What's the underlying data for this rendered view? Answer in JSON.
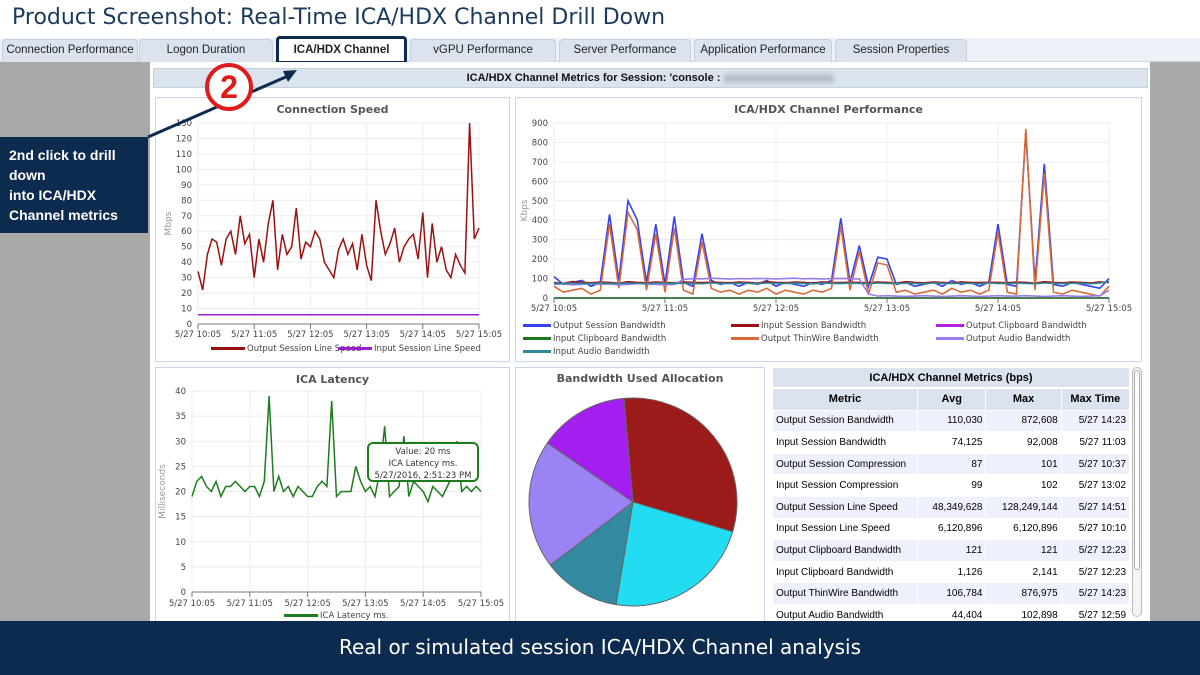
{
  "title": "Product Screenshot: Real-Time ICA/HDX Channel Drill Down",
  "tabs": [
    {
      "label": "Connection Performance",
      "active": false
    },
    {
      "label": "Logon Duration",
      "active": false
    },
    {
      "label": "ICA/HDX Channel",
      "active": true
    },
    {
      "label": "vGPU Performance",
      "active": false
    },
    {
      "label": "Server Performance",
      "active": false
    },
    {
      "label": "Application Performance",
      "active": false
    },
    {
      "label": "Session Properties",
      "active": false
    }
  ],
  "session_header": "ICA/HDX Channel Metrics for Session:  'console :",
  "callout": {
    "step": "2",
    "line1": "2nd click to drill down",
    "line2": "into ICA/HDX Channel metrics"
  },
  "footer": "Real or simulated session ICA/HDX Channel analysis",
  "colors": {
    "navy": "#0d2b4e",
    "step_red": "#e01b1b"
  },
  "tooltip": {
    "value": "Value: 20 ms",
    "series": "ICA Latency ms.",
    "time": "5/27/2016, 2:51:23 PM"
  },
  "chart_data": [
    {
      "id": "speed",
      "type": "line",
      "title": "Connection Speed",
      "ylabel": "Mbps",
      "ylim": [
        0,
        130
      ],
      "yticks": [
        0,
        10,
        20,
        30,
        40,
        50,
        60,
        70,
        80,
        90,
        100,
        110,
        120,
        130
      ],
      "xticks": [
        "5/27 10:05",
        "5/27 11:05",
        "5/27 12:05",
        "5/27 13:05",
        "5/27 14:05",
        "5/27 15:05"
      ],
      "grid": true,
      "legend": "bottom",
      "x_start": "5/27 10:05",
      "x_step_minutes": 5,
      "series": [
        {
          "name": "Output Session Line Speed",
          "color": "#9b1111",
          "values": [
            34,
            22,
            45,
            55,
            53,
            38,
            55,
            60,
            45,
            70,
            52,
            58,
            30,
            55,
            40,
            65,
            80,
            35,
            58,
            45,
            50,
            75,
            42,
            53,
            50,
            60,
            55,
            40,
            35,
            30,
            48,
            55,
            45,
            52,
            35,
            58,
            38,
            28,
            80,
            60,
            45,
            52,
            62,
            40,
            50,
            55,
            58,
            42,
            72,
            30,
            65,
            40,
            50,
            35,
            30,
            45,
            38,
            33,
            130,
            55,
            62
          ]
        },
        {
          "name": "Input Session Line Speed",
          "color": "#9b1fd0",
          "values": [
            6,
            6,
            6,
            6,
            6,
            6,
            6,
            6,
            6,
            6,
            6,
            6,
            6,
            6,
            6,
            6,
            6,
            6,
            6,
            6,
            6,
            6,
            6,
            6,
            6,
            6,
            6,
            6,
            6,
            6,
            6,
            6,
            6,
            6,
            6,
            6,
            6,
            6,
            6,
            6,
            6,
            6,
            6,
            6,
            6,
            6,
            6,
            6,
            6,
            6,
            6,
            6,
            6,
            6,
            6,
            6,
            6,
            6,
            6,
            6,
            6
          ]
        }
      ]
    },
    {
      "id": "perf",
      "type": "line",
      "title": "ICA/HDX Channel Performance",
      "ylabel": "Kbps",
      "ylim": [
        0,
        900
      ],
      "yticks": [
        0,
        100,
        200,
        300,
        400,
        500,
        600,
        700,
        800,
        900
      ],
      "xticks": [
        "5/27 10:05",
        "5/27 11:05",
        "5/27 12:05",
        "5/27 13:05",
        "5/27 14:05",
        "5/27 15:05"
      ],
      "grid": true,
      "legend": "bottom",
      "x_start": "5/27 10:05",
      "x_step_minutes": 5,
      "series": [
        {
          "name": "Output Session Bandwidth",
          "color": "#3344ee",
          "values": [
            110,
            70,
            80,
            90,
            60,
            80,
            430,
            90,
            500,
            400,
            80,
            380,
            70,
            420,
            80,
            60,
            330,
            90,
            70,
            80,
            60,
            80,
            70,
            90,
            60,
            80,
            70,
            60,
            80,
            70,
            90,
            410,
            80,
            270,
            60,
            210,
            200,
            70,
            80,
            60,
            70,
            80,
            60,
            90,
            70,
            80,
            60,
            80,
            380,
            70,
            60,
            850,
            80,
            690,
            70,
            60,
            80,
            70,
            60,
            50,
            100
          ]
        },
        {
          "name": "Input Session Bandwidth",
          "color": "#9b1111",
          "values": [
            80,
            75,
            85,
            80,
            78,
            82,
            80,
            76,
            84,
            80,
            78,
            82,
            80,
            77,
            83,
            80,
            79,
            81,
            80,
            78,
            82,
            80,
            76,
            84,
            80,
            78,
            82,
            80,
            77,
            83,
            80,
            79,
            81,
            80,
            78,
            82,
            80,
            76,
            84,
            80,
            78,
            82,
            80,
            77,
            83,
            80,
            79,
            81,
            80,
            78,
            82,
            80,
            76,
            84,
            80,
            78,
            82,
            80,
            77,
            83,
            80
          ]
        },
        {
          "name": "Output Clipboard Bandwidth",
          "color": "#b41fe0",
          "values": [
            0,
            0,
            0,
            0,
            0,
            0,
            0,
            0,
            0,
            0,
            0,
            0,
            0,
            0,
            0,
            0,
            0,
            0,
            0,
            0,
            0,
            0,
            0,
            0,
            0,
            0,
            0,
            0,
            0,
            0,
            0,
            0,
            0,
            0,
            0,
            0,
            0,
            0,
            0,
            0,
            0,
            0,
            0,
            0,
            0,
            0,
            0,
            0,
            0,
            0,
            0,
            0,
            0,
            0,
            0,
            0,
            0,
            0,
            0,
            0,
            0
          ]
        },
        {
          "name": "Input Clipboard Bandwidth",
          "color": "#1a7a1a",
          "values": [
            0,
            0,
            0,
            0,
            0,
            0,
            0,
            0,
            0,
            0,
            0,
            0,
            0,
            0,
            0,
            0,
            0,
            0,
            0,
            0,
            0,
            0,
            0,
            0,
            0,
            0,
            0,
            0,
            0,
            0,
            0,
            0,
            0,
            0,
            0,
            0,
            0,
            0,
            0,
            0,
            0,
            0,
            0,
            0,
            0,
            0,
            0,
            0,
            0,
            0,
            0,
            0,
            0,
            0,
            0,
            0,
            0,
            0,
            0,
            0,
            0
          ]
        },
        {
          "name": "Output ThinWire Bandwidth",
          "color": "#d86a3a",
          "values": [
            60,
            30,
            40,
            50,
            20,
            40,
            380,
            50,
            440,
            350,
            40,
            330,
            30,
            360,
            40,
            20,
            290,
            50,
            30,
            40,
            20,
            40,
            30,
            50,
            20,
            40,
            30,
            20,
            40,
            30,
            50,
            370,
            40,
            240,
            20,
            180,
            170,
            30,
            40,
            20,
            30,
            40,
            20,
            50,
            30,
            40,
            20,
            40,
            340,
            30,
            20,
            870,
            40,
            640,
            30,
            20,
            40,
            30,
            20,
            10,
            60
          ]
        },
        {
          "name": "Output Audio Bandwidth",
          "color": "#9a7cf0",
          "values": [
            70,
            72,
            68,
            70,
            75,
            70,
            72,
            68,
            70,
            74,
            72,
            70,
            68,
            70,
            95,
            100,
            98,
            102,
            100,
            97,
            100,
            99,
            101,
            100,
            98,
            100,
            102,
            99,
            100,
            98,
            100,
            101,
            100,
            98,
            20,
            10,
            12,
            10,
            8,
            10,
            12,
            10,
            8,
            10,
            12,
            10,
            8,
            10,
            12,
            10,
            10,
            12,
            10,
            8,
            10,
            12,
            10,
            8,
            10,
            12,
            40
          ]
        },
        {
          "name": "Input Audio Bandwidth",
          "color": "#2f8a9a",
          "values": [
            75,
            74,
            76,
            75,
            73,
            77,
            75,
            74,
            76,
            75,
            73,
            77,
            75,
            74,
            76,
            75,
            73,
            77,
            75,
            74,
            76,
            75,
            73,
            77,
            75,
            74,
            76,
            75,
            73,
            77,
            75,
            74,
            76,
            75,
            73,
            77,
            75,
            74,
            76,
            75,
            73,
            77,
            75,
            74,
            76,
            75,
            73,
            77,
            75,
            74,
            76,
            75,
            73,
            77,
            75,
            74,
            76,
            75,
            73,
            77,
            85
          ]
        }
      ]
    },
    {
      "id": "latency",
      "type": "line",
      "title": "ICA Latency",
      "ylabel": "Milliseconds",
      "ylim": [
        0,
        40
      ],
      "yticks": [
        0,
        5,
        10,
        15,
        20,
        25,
        30,
        35,
        40
      ],
      "xticks": [
        "5/27 10:05",
        "5/27 11:05",
        "5/27 12:05",
        "5/27 13:05",
        "5/27 14:05",
        "5/27 15:05"
      ],
      "grid": true,
      "legend": "bottom",
      "x_start": "5/27 10:05",
      "x_step_minutes": 5,
      "series": [
        {
          "name": "ICA Latency ms.",
          "color": "#1e7b1e",
          "values": [
            19,
            22,
            23,
            21,
            20,
            22,
            19,
            21,
            21,
            22,
            21,
            20,
            21,
            21,
            19,
            22,
            39,
            20,
            23,
            20,
            21,
            19,
            21,
            20,
            19,
            19,
            21,
            22,
            21,
            38,
            19,
            20,
            20,
            20,
            25,
            22,
            20,
            21,
            19,
            24,
            33,
            19,
            20,
            21,
            31,
            19,
            22,
            21,
            20,
            18,
            21,
            20,
            19,
            21,
            23,
            30,
            20,
            21,
            20,
            21,
            20
          ]
        }
      ]
    },
    {
      "id": "pie",
      "type": "pie",
      "title": "Bandwidth Used Allocation",
      "slices": [
        {
          "value": 31,
          "color": "#9b1b1b"
        },
        {
          "value": 23,
          "color": "#22ddf2"
        },
        {
          "value": 12,
          "color": "#338aa0"
        },
        {
          "value": 20,
          "color": "#9b82f5"
        },
        {
          "value": 14,
          "color": "#a31ff0"
        }
      ]
    }
  ],
  "table": {
    "title": "ICA/HDX Channel Metrics (bps)",
    "columns": [
      "Metric",
      "Avg",
      "Max",
      "Max Time"
    ],
    "rows": [
      [
        "Output Session Bandwidth",
        "110,030",
        "872,608",
        "5/27 14:23"
      ],
      [
        "Input Session Bandwidth",
        "74,125",
        "92,008",
        "5/27 11:03"
      ],
      [
        "Output Session Compression",
        "87",
        "101",
        "5/27 10:37"
      ],
      [
        "Input Session Compression",
        "99",
        "102",
        "5/27 13:02"
      ],
      [
        "Output Session Line Speed",
        "48,349,628",
        "128,249,144",
        "5/27 14:51"
      ],
      [
        "Input Session Line Speed",
        "6,120,896",
        "6,120,896",
        "5/27 10:10"
      ],
      [
        "Output Clipboard Bandwidth",
        "121",
        "121",
        "5/27 12:23"
      ],
      [
        "Input Clipboard Bandwidth",
        "1,126",
        "2,141",
        "5/27 12:23"
      ],
      [
        "Output ThinWire Bandwidth",
        "106,784",
        "876,975",
        "5/27 14:23"
      ],
      [
        "Output Audio Bandwidth",
        "44,404",
        "102,898",
        "5/27 12:59"
      ]
    ]
  }
}
